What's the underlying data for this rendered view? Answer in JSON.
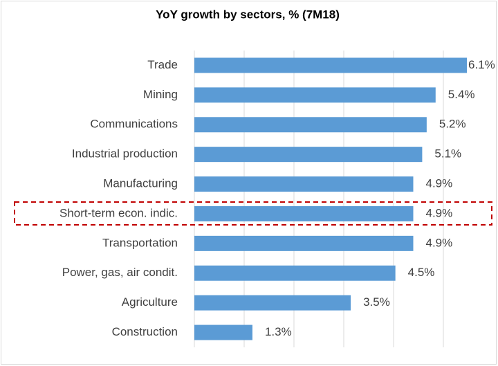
{
  "chart_data": {
    "type": "bar",
    "orientation": "horizontal",
    "title": "YoY growth by sectors, % (7M18)",
    "categories": [
      "Trade",
      "Mining",
      "Communications",
      "Industrial production",
      "Manufacturing",
      "Short-term econ. indic.",
      "Transportation",
      "Power, gas, air condit.",
      "Agriculture",
      "Construction"
    ],
    "values": [
      6.1,
      5.4,
      5.2,
      5.1,
      4.9,
      4.9,
      4.9,
      4.5,
      3.5,
      1.3
    ],
    "value_labels": [
      "6.1%",
      "5.4%",
      "5.2%",
      "5.1%",
      "4.9%",
      "4.9%",
      "4.9%",
      "4.5%",
      "3.5%",
      "1.3%"
    ],
    "color": "#5b9bd5",
    "xlim": [
      0,
      6.1
    ],
    "grid": true
  }
}
